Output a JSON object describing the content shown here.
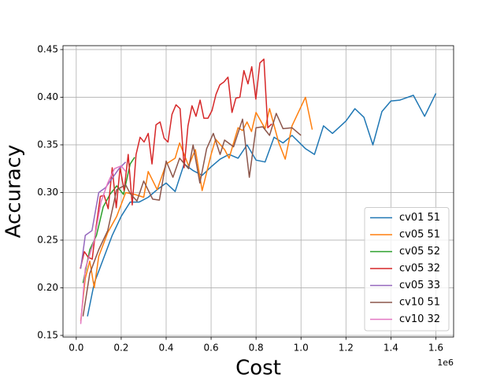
{
  "chart_data": {
    "type": "line",
    "x_label": "Cost",
    "y_label": "Accuracy",
    "x_offset_text": "1e6",
    "xlim": [
      -59000,
      1679000
    ],
    "ylim": [
      0.1483,
      0.4541
    ],
    "xticks": [
      {
        "value": 0,
        "label": "0.0"
      },
      {
        "value": 200000,
        "label": "0.2"
      },
      {
        "value": 400000,
        "label": "0.4"
      },
      {
        "value": 600000,
        "label": "0.6"
      },
      {
        "value": 800000,
        "label": "0.8"
      },
      {
        "value": 1000000,
        "label": "1.0"
      },
      {
        "value": 1200000,
        "label": "1.2"
      },
      {
        "value": 1400000,
        "label": "1.4"
      },
      {
        "value": 1600000,
        "label": "1.6"
      }
    ],
    "yticks": [
      0.15,
      {
        "value": 0.2,
        "label": "0.20"
      },
      0.25,
      {
        "value": 0.3,
        "label": "0.30"
      },
      0.35,
      {
        "value": 0.4,
        "label": "0.40"
      },
      0.45
    ],
    "grid": true,
    "legend": "lower right",
    "series": [
      {
        "name": "cv01 51",
        "color": "#1f77b4",
        "x": [
          50000,
          80000,
          120000,
          160000,
          200000,
          240000,
          280000,
          320000,
          360000,
          400000,
          440000,
          480000,
          520000,
          560000,
          600000,
          640000,
          680000,
          720000,
          760000,
          800000,
          840000,
          880000,
          920000,
          960000,
          1020000,
          1060000,
          1100000,
          1140000,
          1200000,
          1240000,
          1280000,
          1320000,
          1360000,
          1400000,
          1440000,
          1500000,
          1550000,
          1600000
        ],
        "values": [
          0.17,
          0.205,
          0.23,
          0.255,
          0.275,
          0.29,
          0.29,
          0.295,
          0.303,
          0.31,
          0.301,
          0.33,
          0.323,
          0.318,
          0.327,
          0.335,
          0.34,
          0.336,
          0.35,
          0.334,
          0.332,
          0.358,
          0.352,
          0.36,
          0.346,
          0.34,
          0.37,
          0.362,
          0.375,
          0.388,
          0.379,
          0.35,
          0.385,
          0.396,
          0.397,
          0.402,
          0.38,
          0.404
        ]
      },
      {
        "name": "cv05 51",
        "color": "#ff7f0e",
        "x": [
          20000,
          40000,
          60000,
          80000,
          100000,
          140000,
          180000,
          220000,
          260000,
          300000,
          320000,
          360000,
          400000,
          440000,
          460000,
          500000,
          530000,
          560000,
          600000,
          620000,
          660000,
          680000,
          720000,
          740000,
          760000,
          780000,
          800000,
          840000,
          860000,
          900000,
          930000,
          960000,
          1000000,
          1020000,
          1050000
        ],
        "values": [
          0.165,
          0.21,
          0.228,
          0.2,
          0.233,
          0.258,
          0.275,
          0.3,
          0.298,
          0.295,
          0.322,
          0.303,
          0.33,
          0.336,
          0.352,
          0.328,
          0.345,
          0.302,
          0.34,
          0.356,
          0.345,
          0.336,
          0.368,
          0.365,
          0.374,
          0.364,
          0.384,
          0.367,
          0.388,
          0.353,
          0.335,
          0.37,
          0.39,
          0.4,
          0.366
        ]
      },
      {
        "name": "cv05 52",
        "color": "#2ca02c",
        "x": [
          30000,
          60000,
          90000,
          120000,
          150000,
          180000,
          210000,
          240000,
          260000
        ],
        "values": [
          0.205,
          0.24,
          0.255,
          0.285,
          0.298,
          0.307,
          0.298,
          0.33,
          0.337
        ]
      },
      {
        "name": "cv05 32",
        "color": "#d62728",
        "x": [
          18000,
          36000,
          53000,
          71000,
          89000,
          107000,
          124000,
          142000,
          160000,
          178000,
          195000,
          213000,
          231000,
          249000,
          266000,
          284000,
          302000,
          320000,
          337000,
          355000,
          373000,
          391000,
          408000,
          426000,
          444000,
          462000,
          480000,
          497000,
          515000,
          533000,
          551000,
          568000,
          586000,
          604000,
          622000,
          639000,
          657000,
          675000,
          693000,
          710000,
          728000,
          746000,
          764000,
          781000,
          799000,
          817000,
          835000,
          852000,
          870000
        ],
        "values": [
          0.22,
          0.238,
          0.232,
          0.23,
          0.265,
          0.296,
          0.297,
          0.283,
          0.326,
          0.284,
          0.326,
          0.302,
          0.34,
          0.287,
          0.34,
          0.358,
          0.353,
          0.362,
          0.33,
          0.371,
          0.374,
          0.357,
          0.353,
          0.382,
          0.392,
          0.388,
          0.326,
          0.37,
          0.391,
          0.38,
          0.397,
          0.378,
          0.378,
          0.386,
          0.403,
          0.413,
          0.416,
          0.421,
          0.384,
          0.399,
          0.4,
          0.428,
          0.414,
          0.432,
          0.398,
          0.436,
          0.44,
          0.368,
          0.372
        ]
      },
      {
        "name": "cv05 33",
        "color": "#9467bd",
        "x": [
          20000,
          40000,
          70000,
          100000,
          130000,
          160000,
          190000,
          220000
        ],
        "values": [
          0.22,
          0.255,
          0.26,
          0.3,
          0.305,
          0.315,
          0.325,
          0.332
        ]
      },
      {
        "name": "cv10 51",
        "color": "#8c564b",
        "x": [
          30000,
          60000,
          100000,
          140000,
          180000,
          220000,
          240000,
          270000,
          300000,
          340000,
          370000,
          400000,
          430000,
          460000,
          500000,
          520000,
          550000,
          580000,
          610000,
          640000,
          660000,
          700000,
          740000,
          770000,
          800000,
          830000,
          860000,
          890000,
          920000,
          960000,
          1000000
        ],
        "values": [
          0.17,
          0.215,
          0.24,
          0.26,
          0.303,
          0.308,
          0.299,
          0.291,
          0.312,
          0.293,
          0.292,
          0.333,
          0.316,
          0.336,
          0.325,
          0.35,
          0.31,
          0.346,
          0.362,
          0.34,
          0.355,
          0.348,
          0.377,
          0.316,
          0.368,
          0.369,
          0.36,
          0.383,
          0.367,
          0.368,
          0.36
        ]
      },
      {
        "name": "cv10 32",
        "color": "#e377c2",
        "x": [
          20000,
          40000,
          80000,
          110000,
          140000,
          170000,
          200000,
          220000
        ],
        "values": [
          0.162,
          0.22,
          0.25,
          0.29,
          0.31,
          0.325,
          0.328,
          0.322
        ]
      }
    ]
  }
}
